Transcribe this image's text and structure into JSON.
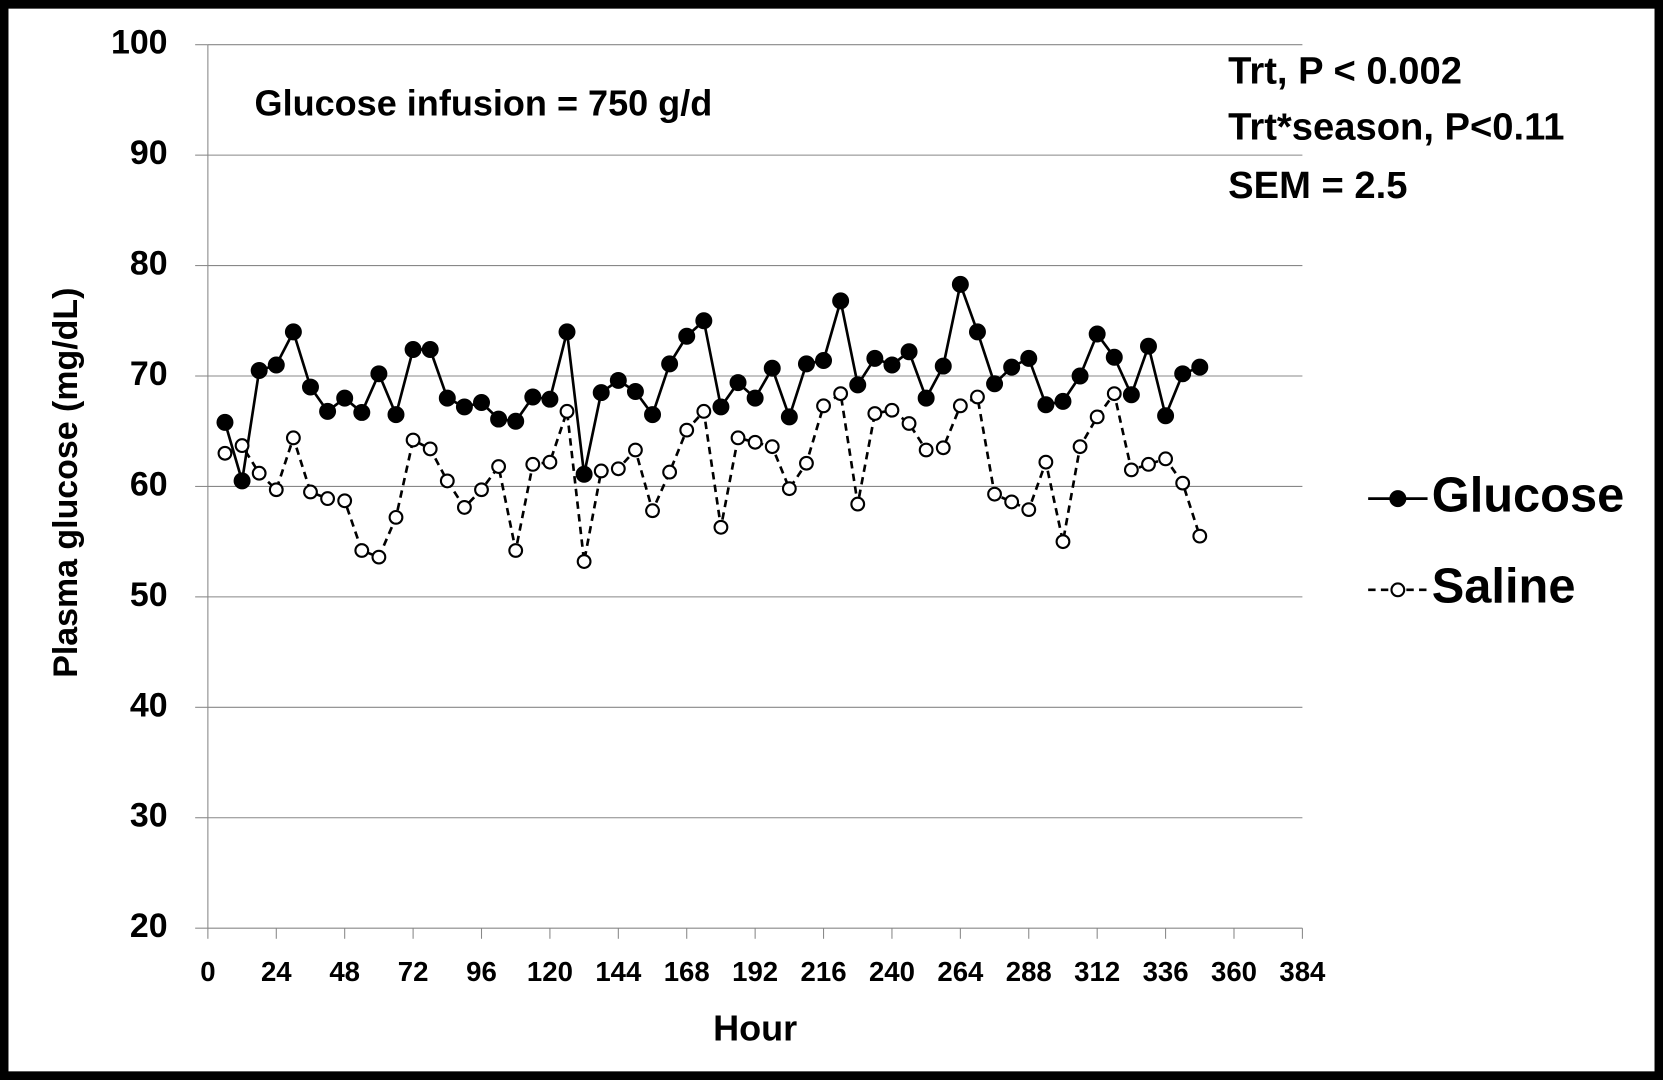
{
  "chart_data": {
    "type": "line",
    "xlabel": "Hour",
    "ylabel": "Plasma glucose (mg/dL)",
    "annotations": [
      "Glucose infusion = 750 g/d",
      "Trt, P <  0.002",
      "Trt*season, P<0.11",
      "SEM = 2.5"
    ],
    "x": [
      6,
      12,
      18,
      24,
      30,
      36,
      42,
      48,
      54,
      60,
      66,
      72,
      78,
      84,
      90,
      96,
      102,
      108,
      114,
      120,
      126,
      132,
      138,
      144,
      150,
      156,
      162,
      168,
      174,
      180,
      186,
      192,
      198,
      204,
      210,
      216,
      222,
      228,
      234,
      240,
      246,
      252,
      258,
      264,
      270,
      276,
      282,
      288,
      294,
      300,
      306,
      312,
      318,
      324,
      330,
      336,
      342,
      348
    ],
    "series": [
      {
        "name": "Glucose",
        "color": "#000000",
        "dash": false,
        "filled": true,
        "values": [
          65.8,
          60.5,
          70.5,
          71,
          74,
          69,
          66.8,
          68,
          66.7,
          70.2,
          66.5,
          72.4,
          72.4,
          68,
          67.2,
          67.6,
          66.1,
          65.9,
          68.1,
          67.9,
          74,
          61.1,
          68.5,
          69.6,
          68.6,
          66.5,
          71.1,
          73.6,
          75,
          67.2,
          69.4,
          68,
          70.7,
          66.3,
          71.1,
          71.4,
          76.8,
          69.2,
          71.6,
          71,
          72.2,
          68,
          70.9,
          78.3,
          74,
          69.3,
          70.8,
          71.6,
          67.4,
          67.7,
          70,
          73.8,
          71.7,
          68.3,
          72.7,
          66.4,
          70.2,
          70.8
        ]
      },
      {
        "name": "Saline",
        "color": "#000000",
        "dash": true,
        "filled": false,
        "values": [
          63,
          63.7,
          61.2,
          59.7,
          64.4,
          59.5,
          58.9,
          58.7,
          54.2,
          53.6,
          57.2,
          64.2,
          63.4,
          60.5,
          58.1,
          59.7,
          61.8,
          54.2,
          62,
          62.2,
          66.8,
          53.2,
          61.4,
          61.6,
          63.3,
          57.8,
          61.3,
          65.1,
          66.8,
          56.3,
          64.4,
          64,
          63.6,
          59.8,
          62.1,
          67.3,
          68.4,
          58.4,
          66.6,
          66.9,
          65.7,
          63.3,
          63.5,
          67.3,
          68.1,
          59.3,
          58.6,
          57.9,
          62.2,
          55,
          63.6,
          66.3,
          68.4,
          61.5,
          62,
          62.5,
          60.3,
          55.5
        ]
      }
    ],
    "xlim": [
      0,
      384
    ],
    "xticks": [
      0,
      24,
      48,
      72,
      96,
      120,
      144,
      168,
      192,
      216,
      240,
      264,
      288,
      312,
      336,
      360,
      384
    ],
    "ylim": [
      20,
      100
    ],
    "yticks": [
      20,
      30,
      40,
      50,
      60,
      70,
      80,
      90,
      100
    ],
    "grid": true,
    "legend": "right"
  }
}
